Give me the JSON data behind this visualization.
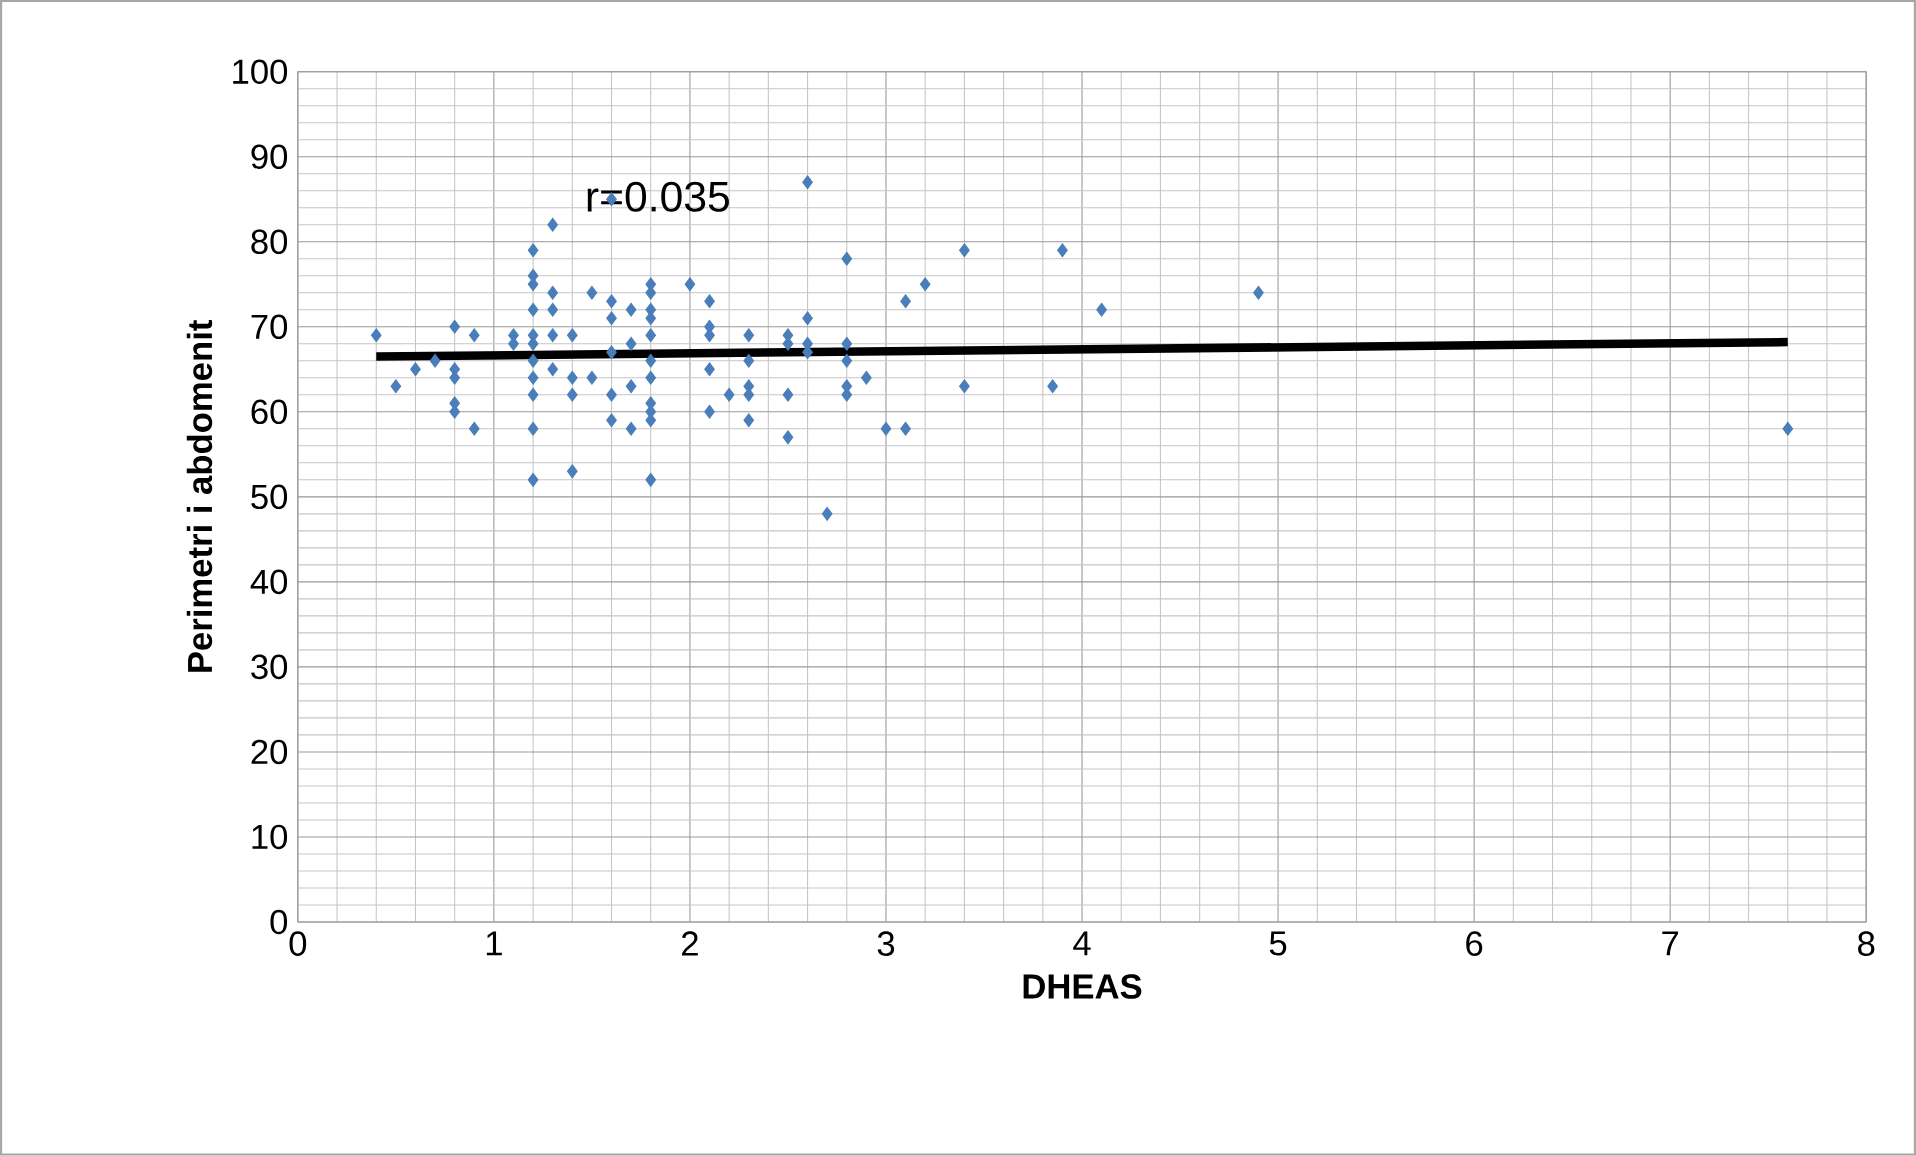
{
  "chart_data": {
    "type": "scatter",
    "xlabel": "DHEAS",
    "ylabel": "Perimetri i abdomenit",
    "xlim": [
      0,
      8
    ],
    "ylim": [
      0,
      100
    ],
    "xticks": [
      0,
      1,
      2,
      3,
      4,
      5,
      6,
      7,
      8
    ],
    "yticks": [
      0,
      10,
      20,
      30,
      40,
      50,
      60,
      70,
      80,
      90,
      100
    ],
    "grid": true,
    "annotations": [
      "r=0.035"
    ],
    "series": [
      {
        "marker": "diamond",
        "color": "#4a7ebb",
        "x": [
          0.4,
          0.5,
          0.6,
          0.7,
          0.8,
          0.8,
          0.8,
          0.8,
          0.8,
          0.9,
          0.9,
          1.1,
          1.1,
          1.2,
          1.2,
          1.2,
          1.2,
          1.2,
          1.2,
          1.2,
          1.2,
          1.2,
          1.2,
          1.2,
          1.3,
          1.3,
          1.3,
          1.3,
          1.3,
          1.4,
          1.4,
          1.4,
          1.4,
          1.5,
          1.5,
          1.6,
          1.6,
          1.6,
          1.6,
          1.6,
          1.6,
          1.7,
          1.7,
          1.7,
          1.7,
          1.8,
          1.8,
          1.8,
          1.8,
          1.8,
          1.8,
          1.8,
          1.8,
          1.8,
          1.8,
          1.8,
          2.0,
          2.1,
          2.1,
          2.1,
          2.1,
          2.1,
          2.2,
          2.3,
          2.3,
          2.3,
          2.3,
          2.3,
          2.5,
          2.5,
          2.5,
          2.5,
          2.6,
          2.6,
          2.6,
          2.6,
          2.7,
          2.8,
          2.8,
          2.8,
          2.8,
          2.8,
          2.9,
          3.0,
          3.1,
          3.1,
          3.2,
          3.4,
          3.4,
          3.85,
          3.9,
          4.1,
          4.9,
          7.6
        ],
        "values": [
          69,
          63,
          65,
          66,
          70,
          65,
          64,
          61,
          60,
          69,
          58,
          68,
          69,
          79,
          76,
          75,
          72,
          69,
          68,
          66,
          64,
          62,
          58,
          52,
          82,
          74,
          72,
          69,
          65,
          69,
          64,
          62,
          53,
          74,
          64,
          85,
          73,
          71,
          67,
          62,
          59,
          72,
          68,
          63,
          58,
          75,
          74,
          72,
          71,
          69,
          66,
          64,
          61,
          60,
          59,
          52,
          75,
          73,
          70,
          69,
          65,
          60,
          62,
          69,
          66,
          63,
          62,
          59,
          69,
          68,
          62,
          57,
          87,
          71,
          68,
          67,
          48,
          78,
          68,
          66,
          63,
          62,
          64,
          58,
          73,
          58,
          75,
          79,
          63,
          63,
          79,
          72,
          74,
          58
        ]
      },
      {
        "type": "line",
        "color": "#000000",
        "x": [
          0.4,
          7.6
        ],
        "values": [
          66.5,
          68.2
        ]
      }
    ]
  }
}
